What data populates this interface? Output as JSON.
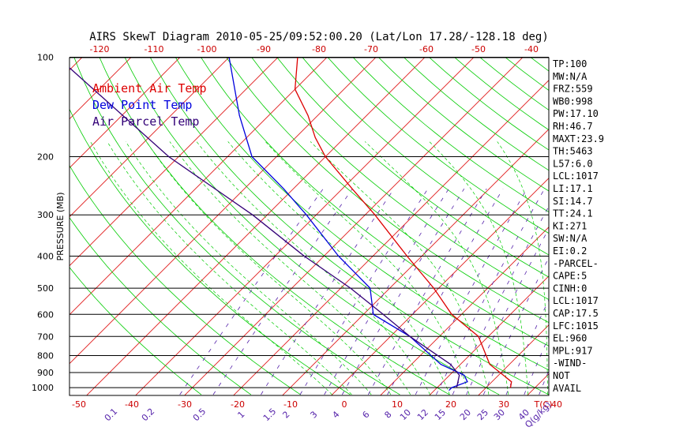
{
  "chart_data": {
    "type": "line",
    "title": "AIRS SkewT Diagram 2010-05-25/09:52:00.20 (Lat/Lon 17.28/-128.18 deg)",
    "ylabel": "PRESSURE (MB)",
    "y_scale": "log",
    "ylim": [
      1050,
      100
    ],
    "xlim_bottom": [
      -50,
      40
    ],
    "bottom_ticks": [
      "-50",
      "-40",
      "-30",
      "-20",
      "-10",
      "0",
      "10",
      "20",
      "30",
      "40"
    ],
    "bottom_unit_label": "T(C)",
    "top_ticks": [
      "-120",
      "-110",
      "-100",
      "-90",
      "-80",
      "-70",
      "-60",
      "-50",
      "-40"
    ],
    "pressure_ticks": [
      "100",
      "200",
      "300",
      "400",
      "500",
      "600",
      "700",
      "800",
      "900",
      "1000"
    ],
    "mixing_ratio_labels": [
      "0.1",
      "0.2",
      "0.5",
      "1",
      "1.5",
      "2",
      "3",
      "4",
      "6",
      "8",
      "10",
      "12",
      "15",
      "20",
      "25",
      "30",
      "40",
      "Q(g/kg)"
    ],
    "legend": [
      {
        "name": "Ambient Air Temp",
        "color": "#dd0000"
      },
      {
        "name": "Dew Point Temp",
        "color": "#0000dd"
      },
      {
        "name": "Air Parcel Temp",
        "color": "#330077"
      }
    ],
    "series": [
      {
        "name": "Ambient Air Temp",
        "color": "#dd0000",
        "points": [
          [
            1000,
            25
          ],
          [
            960,
            24
          ],
          [
            917,
            21
          ],
          [
            850,
            16
          ],
          [
            700,
            8
          ],
          [
            600,
            -2
          ],
          [
            500,
            -11
          ],
          [
            400,
            -23
          ],
          [
            300,
            -38
          ],
          [
            250,
            -48
          ],
          [
            200,
            -60
          ],
          [
            175,
            -66
          ],
          [
            150,
            -72
          ],
          [
            125,
            -80
          ],
          [
            100,
            -86
          ]
        ]
      },
      {
        "name": "Dew Point Temp",
        "color": "#0000dd",
        "points": [
          [
            1020,
            13
          ],
          [
            1000,
            13
          ],
          [
            960,
            15
          ],
          [
            917,
            13
          ],
          [
            850,
            6
          ],
          [
            700,
            -6
          ],
          [
            600,
            -18
          ],
          [
            500,
            -24
          ],
          [
            400,
            -37
          ],
          [
            300,
            -52
          ],
          [
            250,
            -62
          ],
          [
            200,
            -75
          ],
          [
            150,
            -86
          ],
          [
            100,
            -100
          ]
        ]
      },
      {
        "name": "Air Parcel Temp",
        "color": "#330077",
        "points": [
          [
            1000,
            14
          ],
          [
            917,
            12
          ],
          [
            850,
            8
          ],
          [
            700,
            -6
          ],
          [
            600,
            -16
          ],
          [
            500,
            -28
          ],
          [
            400,
            -44
          ],
          [
            300,
            -63
          ],
          [
            200,
            -92
          ],
          [
            100,
            -135
          ]
        ]
      }
    ],
    "grid": true
  },
  "indices": [
    "TP:100",
    "MW:N/A",
    "FRZ:559",
    "WB0:998",
    "PW:17.10",
    "RH:46.7",
    "MAXT:23.9",
    "TH:5463",
    "L57:6.0",
    "LCL:1017",
    "LI:17.1",
    "SI:14.7",
    "TT:24.1",
    "KI:271",
    "SW:N/A",
    "EI:0.2",
    "-PARCEL-",
    "CAPE:5",
    "CINH:0",
    "LCL:1017",
    "CAP:17.5",
    "LFC:1015",
    "EL:960",
    "MPL:917",
    "-WIND-",
    "NOT",
    "AVAIL"
  ],
  "colors": {
    "isotherm": "#dd0000",
    "dry_adiabat": "#00cc00",
    "moist_adiabat": "#00cc00",
    "mixing_ratio": "#5522aa",
    "isobar": "#000000",
    "top_axis": "#cc0000",
    "bottom_axis": "#cc0000",
    "ratio_axis": "#5522aa"
  }
}
